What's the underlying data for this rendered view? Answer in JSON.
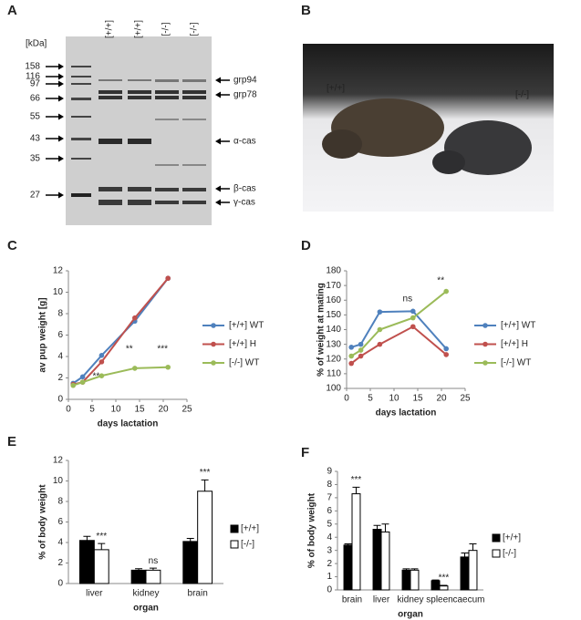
{
  "gel": {
    "label": "A",
    "unit": "[kDa]",
    "markers": [
      "158",
      "116",
      "97",
      "66",
      "55",
      "43",
      "35",
      "27"
    ],
    "lanes": [
      "[+/+]",
      "[+/+]",
      "[-/-]",
      "[-/-]"
    ],
    "bands": [
      "grp94",
      "grp78",
      "α-cas",
      "β-cas",
      "γ-cas"
    ]
  },
  "photo": {
    "label": "B",
    "left": "[+/+]",
    "right": "[-/-]"
  },
  "chart_data": [
    {
      "type": "line",
      "label": "C",
      "xlabel": "days lactation",
      "ylabel": "av pup weight [g]",
      "x": [
        1,
        3,
        7,
        14,
        21
      ],
      "xlim": [
        0,
        25
      ],
      "xticks": [
        0,
        5,
        10,
        15,
        20,
        25
      ],
      "ylim": [
        0,
        12
      ],
      "yticks": [
        0,
        2,
        4,
        6,
        8,
        10,
        12
      ],
      "series": [
        {
          "name": "[+/+] WT",
          "color": "#4f81bd",
          "values": [
            1.5,
            2.1,
            4.1,
            7.3,
            11.3
          ]
        },
        {
          "name": "[+/+] H",
          "color": "#c0504d",
          "values": [
            1.4,
            1.6,
            3.5,
            7.6,
            11.3
          ]
        },
        {
          "name": "[-/-] WT",
          "color": "#9bbb59",
          "values": [
            1.3,
            1.6,
            2.2,
            2.9,
            3.0
          ]
        }
      ],
      "annotations": [
        {
          "text": "**",
          "x": 7
        },
        {
          "text": "**",
          "x": 14
        },
        {
          "text": "***",
          "x": 21
        }
      ]
    },
    {
      "type": "line",
      "label": "D",
      "xlabel": "days lactation",
      "ylabel": "% of weight at mating",
      "x": [
        1,
        3,
        7,
        14,
        21
      ],
      "xlim": [
        0,
        25
      ],
      "xticks": [
        0,
        5,
        10,
        15,
        20,
        25
      ],
      "ylim": [
        100,
        180
      ],
      "yticks": [
        100,
        110,
        120,
        130,
        140,
        150,
        160,
        170,
        180
      ],
      "series": [
        {
          "name": "[+/+] WT",
          "color": "#4f81bd",
          "values": [
            128,
            130,
            152,
            152.5,
            127
          ]
        },
        {
          "name": "[+/+] H",
          "color": "#c0504d",
          "values": [
            117,
            122,
            130,
            142,
            123
          ]
        },
        {
          "name": "[-/-] WT",
          "color": "#9bbb59",
          "values": [
            122,
            126,
            140,
            148,
            166
          ]
        }
      ],
      "annotations": [
        {
          "text": "ns",
          "x": 14
        },
        {
          "text": "**",
          "x": 21
        }
      ]
    },
    {
      "type": "bar",
      "label": "E",
      "xlabel": "organ",
      "ylabel": "% of body weight",
      "categories": [
        "liver",
        "kidney",
        "brain"
      ],
      "ylim": [
        0,
        12
      ],
      "yticks": [
        0,
        2,
        4,
        6,
        8,
        10,
        12
      ],
      "series": [
        {
          "name": "[+/+]",
          "color": "#000000",
          "values": [
            4.2,
            1.3,
            4.1
          ],
          "errors": [
            0.4,
            0.15,
            0.3
          ]
        },
        {
          "name": "[-/-]",
          "color": "#ffffff",
          "values": [
            3.3,
            1.3,
            9.0
          ],
          "errors": [
            0.6,
            0.2,
            1.1
          ]
        }
      ],
      "annotations": [
        {
          "text": "***",
          "category": "liver"
        },
        {
          "text": "ns",
          "category": "kidney"
        },
        {
          "text": "***",
          "category": "brain"
        }
      ]
    },
    {
      "type": "bar",
      "label": "F",
      "xlabel": "organ",
      "ylabel": "% of body weight",
      "categories": [
        "brain",
        "liver",
        "kidney",
        "spleen",
        "caecum"
      ],
      "ylim": [
        0,
        9
      ],
      "yticks": [
        0,
        1,
        2,
        3,
        4,
        5,
        6,
        7,
        8,
        9
      ],
      "series": [
        {
          "name": "[+/+]",
          "color": "#000000",
          "values": [
            3.4,
            4.6,
            1.5,
            0.7,
            2.5
          ],
          "errors": [
            0.1,
            0.3,
            0.1,
            0.05,
            0.3
          ]
        },
        {
          "name": "[-/-]",
          "color": "#ffffff",
          "values": [
            7.3,
            4.4,
            1.5,
            0.3,
            3.0
          ],
          "errors": [
            0.5,
            0.6,
            0.1,
            0.05,
            0.5
          ]
        }
      ],
      "annotations": [
        {
          "text": "***",
          "category": "brain"
        },
        {
          "text": "***",
          "category": "spleen"
        }
      ]
    }
  ]
}
